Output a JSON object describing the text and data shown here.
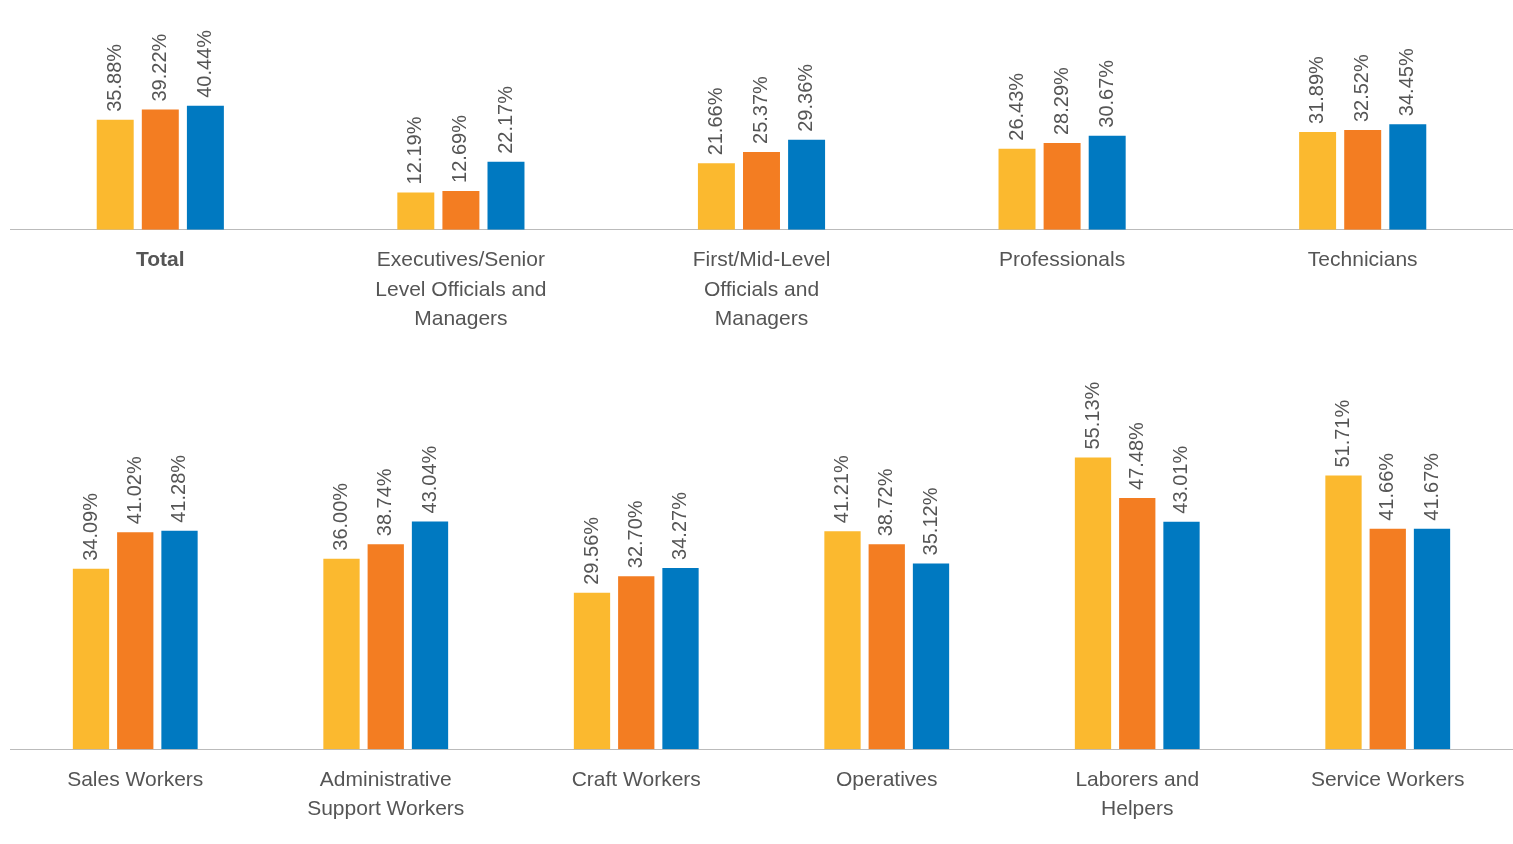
{
  "chart_data": [
    {
      "type": "bar",
      "categories": [
        "Total",
        "Executives/Senior Level Officials and Managers",
        "First/Mid-Level Officials and Managers",
        "Professionals",
        "Technicians"
      ],
      "data_labels": true,
      "series": [
        {
          "color": "#fbb92f",
          "values": [
            35.88,
            12.19,
            21.66,
            26.43,
            31.89
          ],
          "value_labels": [
            "35.88%",
            "12.19%",
            "21.66%",
            "26.43%",
            "31.89%"
          ]
        },
        {
          "color": "#f37d22",
          "values": [
            39.22,
            12.69,
            25.37,
            28.29,
            32.52
          ],
          "value_labels": [
            "39.22%",
            "12.69%",
            "25.37%",
            "28.29%",
            "32.52%"
          ]
        },
        {
          "color": "#0079c1",
          "values": [
            40.44,
            22.17,
            29.36,
            30.67,
            34.45
          ],
          "value_labels": [
            "40.44%",
            "22.17%",
            "29.36%",
            "30.67%",
            "34.45%"
          ]
        }
      ],
      "tick_labels": "x",
      "grid": false
    },
    {
      "type": "bar",
      "categories": [
        "Sales Workers",
        "Administrative Support Workers",
        "Craft Workers",
        "Operatives",
        "Laborers and Helpers",
        "Service Workers"
      ],
      "data_labels": true,
      "series": [
        {
          "color": "#fbb92f",
          "values": [
            34.09,
            36.0,
            29.56,
            41.21,
            55.13,
            51.71
          ],
          "value_labels": [
            "34.09%",
            "36.00%",
            "29.56%",
            "41.21%",
            "55.13%",
            "51.71%"
          ]
        },
        {
          "color": "#f37d22",
          "values": [
            41.02,
            38.74,
            32.7,
            38.72,
            47.48,
            41.66
          ],
          "value_labels": [
            "41.02%",
            "38.74%",
            "32.70%",
            "38.72%",
            "47.48%",
            "41.66%"
          ]
        },
        {
          "color": "#0079c1",
          "values": [
            41.28,
            43.04,
            34.27,
            35.12,
            43.01,
            41.67
          ],
          "value_labels": [
            "41.28%",
            "43.04%",
            "34.27%",
            "35.12%",
            "43.01%",
            "41.67%"
          ]
        }
      ],
      "tick_labels": "x",
      "grid": false
    }
  ]
}
